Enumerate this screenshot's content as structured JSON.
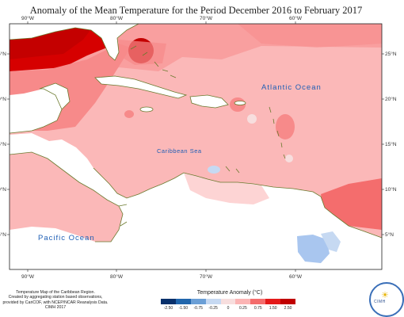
{
  "title": "Anomaly of the Mean Temperature for the Period December 2016 to February 2017",
  "axes": {
    "lon_top": [
      "90°W",
      "80°W",
      "70°W",
      "60°W"
    ],
    "lon_bottom": [
      "90°W",
      "80°W",
      "70°W",
      "60°W"
    ],
    "lat_left": [
      "5°N",
      "0°N",
      "5°N",
      "0°N",
      "5°N"
    ],
    "lat_right": [
      "25°N",
      "20°N",
      "15°N",
      "10°N",
      "5°N"
    ]
  },
  "labels": {
    "atlantic": "Atlantic Ocean",
    "caribbean": "Caribbean Sea",
    "pacific": "Pacific Ocean"
  },
  "footnote": [
    "Temperature Map of the Caribbean Region.",
    "Created by aggregating station based observations,",
    "provided by CariCOF, with NCEP/NCAR Reanalysis Data.",
    "CIMH 2017"
  ],
  "legend": {
    "title": "Temperature Anomaly (°C)",
    "ticks": [
      "-2.50",
      "-1.50",
      "-0.75",
      "-0.25",
      "0",
      "0.25",
      "0.75",
      "1.50",
      "2.50"
    ],
    "colors": [
      "#08306b",
      "#2166ac",
      "#6b9fd6",
      "#c6d9f2",
      "#f7dede",
      "#fbb4b4",
      "#f46d6d",
      "#e41a1a",
      "#c00000"
    ]
  },
  "map_colors": {
    "land": "#ffffff",
    "coast": "#6b7a2e",
    "anomaly_light": "#fbb8b8",
    "anomaly_mid": "#f78a8a",
    "anomaly_strong": "#e31010",
    "anomaly_dark": "#c40000",
    "anomaly_cool": "#a9c6ef"
  },
  "logo_text": "CIMH"
}
